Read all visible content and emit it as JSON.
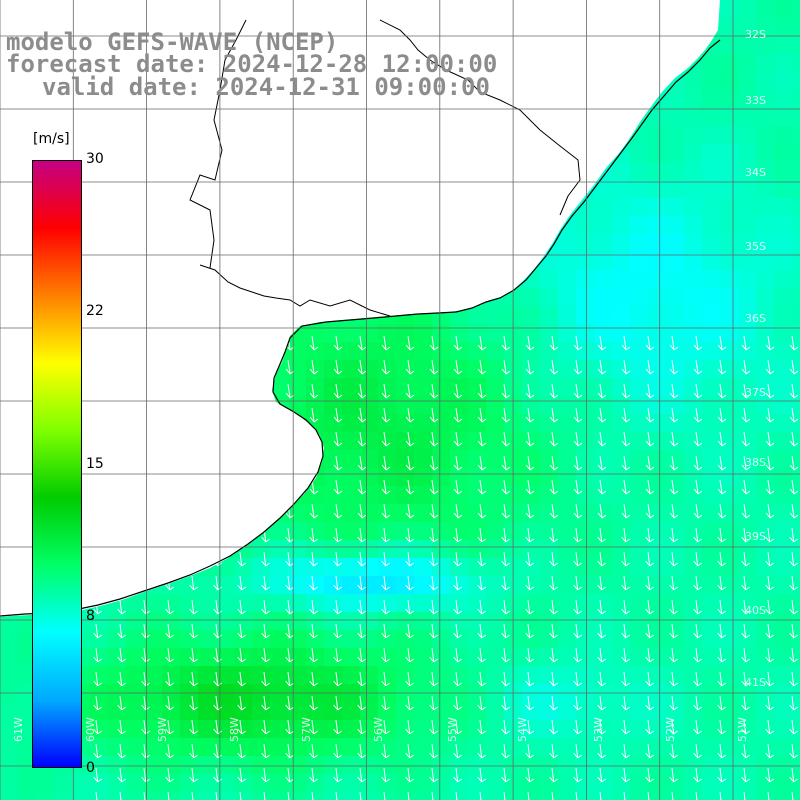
{
  "title": {
    "model": "modelo GEFS-WAVE (NCEP)",
    "forecast": "forecast date: 2024-12-28 12:00:00",
    "valid": "valid date: 2024-12-31 09:00:00"
  },
  "colorbar": {
    "unit": "[m/s]",
    "ticks": [
      "30",
      "22",
      "15",
      "8"
    ],
    "bottom_label": "0",
    "min": 0,
    "max": 30,
    "stops": [
      "#0000ff",
      "#00aaff",
      "#00ffff",
      "#00ff66",
      "#00cc00",
      "#7fff00",
      "#ffff00",
      "#ff8000",
      "#ff0000",
      "#c40083"
    ]
  },
  "map": {
    "ocean_field": "wind speed with direction arrows",
    "lat_labels": [
      "32S",
      "33S",
      "34S",
      "35S",
      "36S",
      "37S",
      "38S",
      "39S",
      "40S",
      "41S"
    ],
    "lon_labels": [
      "61W",
      "60W",
      "59W",
      "58W",
      "57W",
      "56W",
      "55W",
      "54W",
      "53W",
      "52W",
      "51W"
    ],
    "arrow_color": "#ffffff",
    "land_color": "#ffffff",
    "coastline_color": "#000000",
    "grid_color": "#666666"
  }
}
